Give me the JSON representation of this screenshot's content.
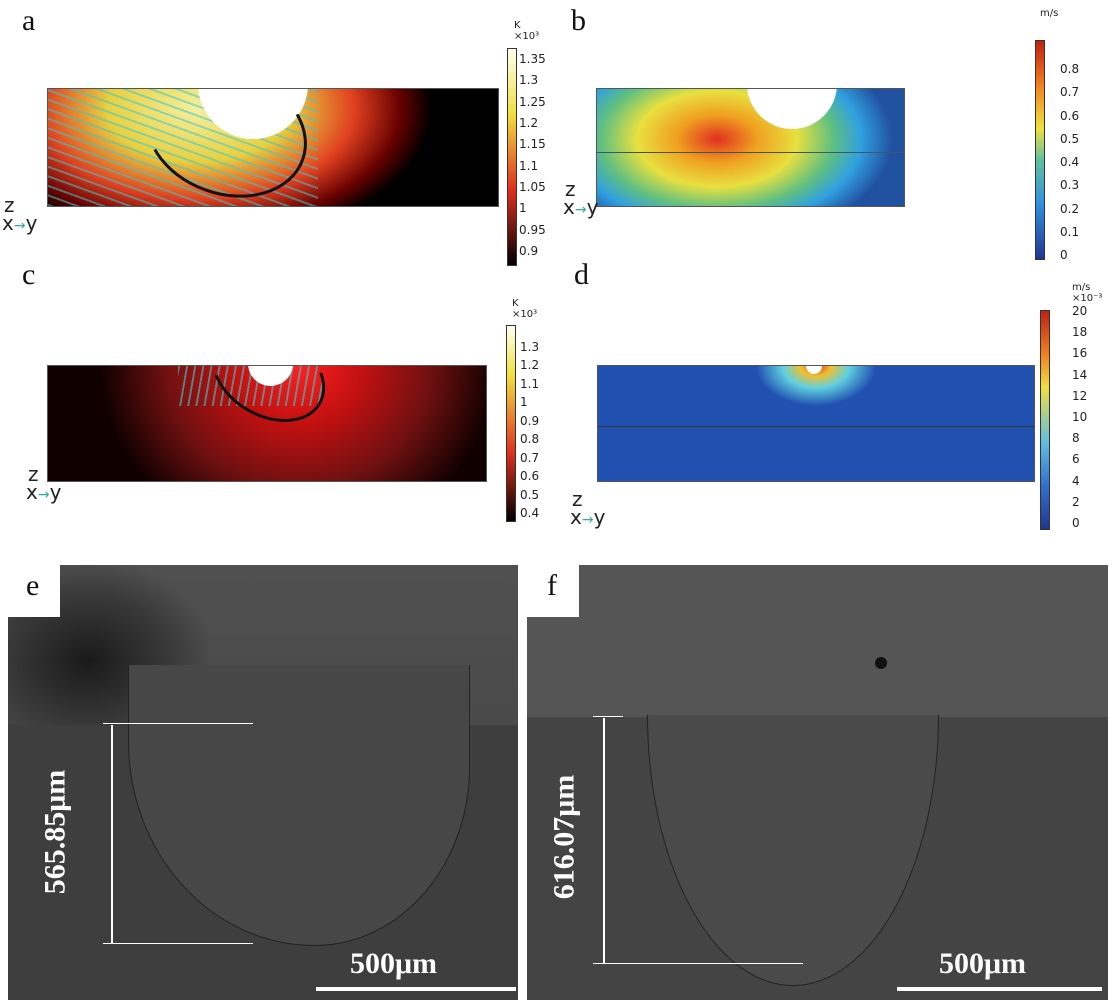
{
  "panels": {
    "a": {
      "label": "a",
      "unit": "K",
      "scale": "×10³",
      "ticks": [
        "1.35",
        "1.3",
        "1.25",
        "1.2",
        "1.15",
        "1.1",
        "1.05",
        "1",
        "0.95",
        "0.9"
      ],
      "axes": {
        "z": "z",
        "x": "x",
        "y": "y"
      }
    },
    "b": {
      "label": "b",
      "unit": "m/s",
      "ticks": [
        "0.8",
        "0.7",
        "0.6",
        "0.5",
        "0.4",
        "0.3",
        "0.2",
        "0.1",
        "0"
      ],
      "axes": {
        "z": "z",
        "x": "x",
        "y": "y"
      }
    },
    "c": {
      "label": "c",
      "unit": "K",
      "scale": "×10³",
      "ticks": [
        "1.3",
        "1.2",
        "1.1",
        "1",
        "0.9",
        "0.8",
        "0.7",
        "0.6",
        "0.5",
        "0.4"
      ],
      "axes": {
        "z": "z",
        "x": "x",
        "y": "y"
      }
    },
    "d": {
      "label": "d",
      "unit": "m/s",
      "scale": "×10⁻³",
      "ticks": [
        "20",
        "18",
        "16",
        "14",
        "12",
        "10",
        "8",
        "6",
        "4",
        "2",
        "0"
      ],
      "axes": {
        "z": "z",
        "x": "x",
        "y": "y"
      }
    },
    "e": {
      "label": "e",
      "depth": "565.85μm",
      "scalebar": "500μm"
    },
    "f": {
      "label": "f",
      "depth": "616.07μm",
      "scalebar": "500μm"
    }
  }
}
